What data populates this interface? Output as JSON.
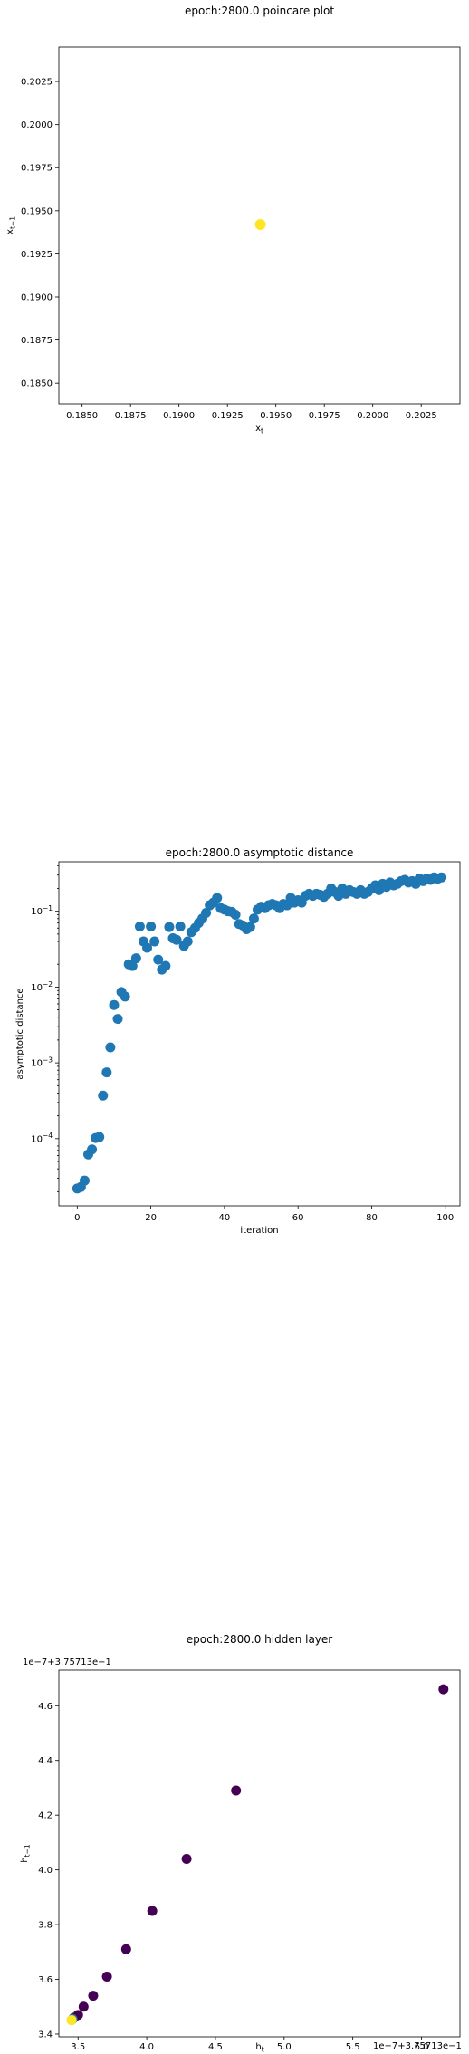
{
  "chart_data": [
    {
      "type": "scatter",
      "title": "epoch:2800.0 poincare plot",
      "xlabel": "x_t",
      "ylabel": "x_{t-1}",
      "xlim": [
        0.1838,
        0.2045
      ],
      "ylim": [
        0.1838,
        0.2045
      ],
      "xticks": [
        "0.1850",
        "0.1875",
        "0.1900",
        "0.1925",
        "0.1950",
        "0.1975",
        "0.2000",
        "0.2025"
      ],
      "yticks": [
        "0.1850",
        "0.1875",
        "0.1900",
        "0.1925",
        "0.1950",
        "0.1975",
        "0.2000",
        "0.2025"
      ],
      "points": [
        [
          0.1942,
          0.1942
        ]
      ],
      "color": "#fde725",
      "grid": false
    },
    {
      "type": "scatter",
      "title": "epoch:2800.0 asymptotic distance",
      "xlabel": "iteration",
      "ylabel": "asymptotic distance",
      "xlim": [
        -5,
        104
      ],
      "yscale": "log",
      "ylim": [
        1.3e-05,
        0.45
      ],
      "xticks": [
        "0",
        "20",
        "40",
        "60",
        "80",
        "100"
      ],
      "yticks": [
        "10^{-4}",
        "10^{-3}",
        "10^{-2}",
        "10^{-1}"
      ],
      "color": "#1f77b4",
      "grid": false,
      "x": [
        0,
        1,
        2,
        3,
        4,
        5,
        6,
        7,
        8,
        9,
        10,
        11,
        12,
        13,
        14,
        15,
        16,
        17,
        18,
        19,
        20,
        21,
        22,
        23,
        24,
        25,
        26,
        27,
        28,
        29,
        30,
        31,
        32,
        33,
        34,
        35,
        36,
        37,
        38,
        39,
        40,
        41,
        42,
        43,
        44,
        45,
        46,
        47,
        48,
        49,
        50,
        51,
        52,
        53,
        54,
        55,
        56,
        57,
        58,
        59,
        60,
        61,
        62,
        63,
        64,
        65,
        66,
        67,
        68,
        69,
        70,
        71,
        72,
        73,
        74,
        75,
        76,
        77,
        78,
        79,
        80,
        81,
        82,
        83,
        84,
        85,
        86,
        87,
        88,
        89,
        90,
        91,
        92,
        93,
        94,
        95,
        96,
        97,
        98,
        99
      ],
      "y": [
        2.2e-05,
        2.3e-05,
        2.8e-05,
        6.2e-05,
        7.2e-05,
        0.000102,
        0.000105,
        0.00037,
        0.00075,
        0.0016,
        0.0058,
        0.0038,
        0.0086,
        0.0075,
        0.02,
        0.019,
        0.024,
        0.063,
        0.04,
        0.033,
        0.063,
        0.04,
        0.023,
        0.017,
        0.019,
        0.062,
        0.044,
        0.042,
        0.063,
        0.035,
        0.04,
        0.053,
        0.06,
        0.07,
        0.08,
        0.095,
        0.12,
        0.13,
        0.15,
        0.11,
        0.105,
        0.1,
        0.098,
        0.09,
        0.068,
        0.065,
        0.058,
        0.062,
        0.08,
        0.105,
        0.115,
        0.11,
        0.12,
        0.125,
        0.12,
        0.11,
        0.125,
        0.12,
        0.15,
        0.13,
        0.14,
        0.13,
        0.16,
        0.17,
        0.16,
        0.17,
        0.165,
        0.155,
        0.17,
        0.2,
        0.18,
        0.16,
        0.2,
        0.17,
        0.19,
        0.18,
        0.17,
        0.19,
        0.17,
        0.18,
        0.2,
        0.22,
        0.19,
        0.23,
        0.21,
        0.24,
        0.22,
        0.23,
        0.25,
        0.26,
        0.24,
        0.25,
        0.23,
        0.27,
        0.25,
        0.27,
        0.26,
        0.28,
        0.27,
        0.28
      ]
    },
    {
      "type": "scatter",
      "title": "epoch:2800.0 hidden layer",
      "xlabel": "h_t",
      "ylabel": "h_{t-1}",
      "offset_x": "1e−7+3.75713e−1",
      "offset_y": "1e−7+3.75713e−1",
      "xlim": [
        3.36,
        6.28
      ],
      "ylim": [
        3.39,
        4.73
      ],
      "xticks": [
        "3.5",
        "4.0",
        "4.5",
        "5.0",
        "5.5",
        "6.0"
      ],
      "yticks": [
        "3.4",
        "3.6",
        "3.8",
        "4.0",
        "4.2",
        "4.4",
        "4.6"
      ],
      "grid": false,
      "points": [
        {
          "x": 6.16,
          "y": 4.66,
          "color": "#440154"
        },
        {
          "x": 4.65,
          "y": 4.29,
          "color": "#440154"
        },
        {
          "x": 4.29,
          "y": 4.04,
          "color": "#440154"
        },
        {
          "x": 4.04,
          "y": 3.85,
          "color": "#440154"
        },
        {
          "x": 3.85,
          "y": 3.71,
          "color": "#440154"
        },
        {
          "x": 3.71,
          "y": 3.61,
          "color": "#440154"
        },
        {
          "x": 3.61,
          "y": 3.54,
          "color": "#440154"
        },
        {
          "x": 3.54,
          "y": 3.5,
          "color": "#440154"
        },
        {
          "x": 3.5,
          "y": 3.47,
          "color": "#440154"
        },
        {
          "x": 3.47,
          "y": 3.46,
          "color": "#440154"
        },
        {
          "x": 3.46,
          "y": 3.455,
          "color": "#31688e"
        },
        {
          "x": 3.455,
          "y": 3.452,
          "color": "#35b779"
        },
        {
          "x": 3.452,
          "y": 3.451,
          "color": "#fde725"
        }
      ]
    }
  ]
}
